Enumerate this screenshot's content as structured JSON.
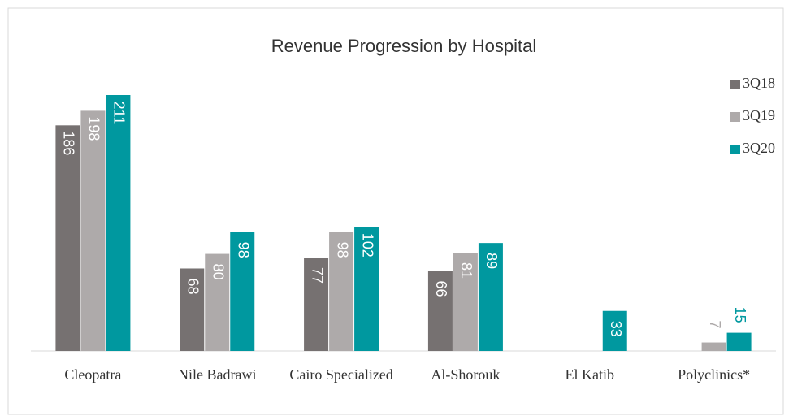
{
  "chart_data": {
    "type": "bar",
    "title": "Revenue Progression by Hospital",
    "categories": [
      "Cleopatra",
      "Nile Badrawi",
      "Cairo Specialized",
      "Al-Shorouk",
      "El Katib",
      "Polyclinics*"
    ],
    "series": [
      {
        "name": "3Q18",
        "color": "#767171",
        "values": [
          186,
          68,
          77,
          66,
          null,
          null
        ]
      },
      {
        "name": "3Q19",
        "color": "#aeaaaa",
        "values": [
          198,
          80,
          98,
          81,
          null,
          7
        ]
      },
      {
        "name": "3Q20",
        "color": "#00989f",
        "values": [
          211,
          98,
          102,
          89,
          33,
          15
        ]
      }
    ],
    "legend": "right"
  }
}
